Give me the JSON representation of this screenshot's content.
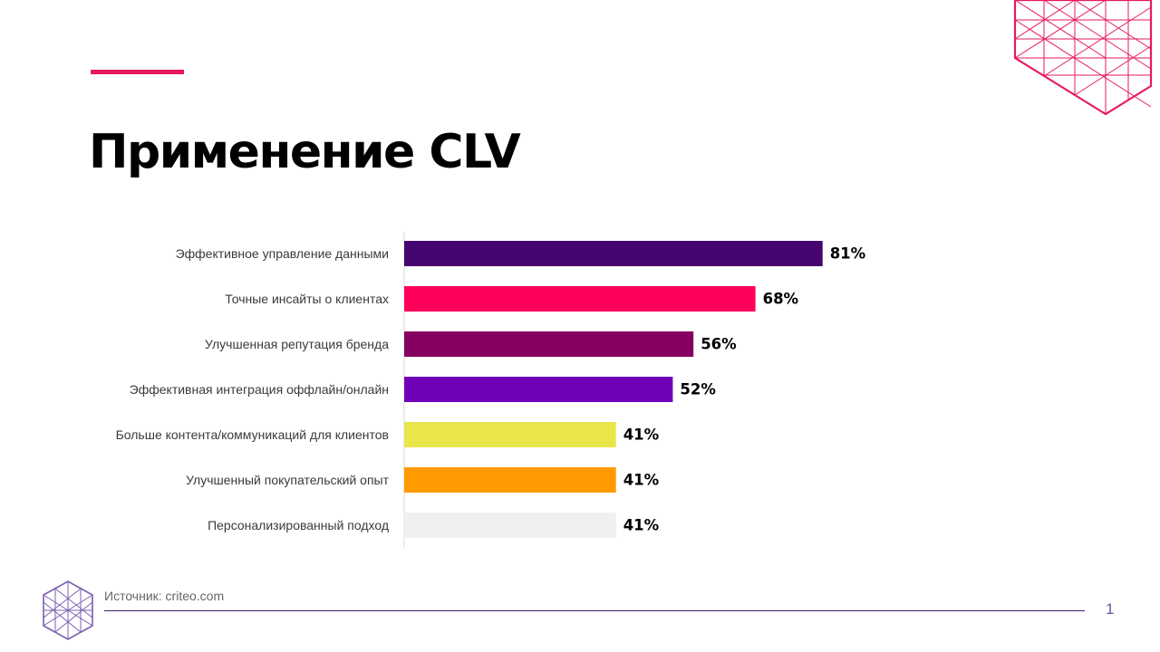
{
  "slide": {
    "title": "Применение CLV",
    "source": "Источник: criteo.com",
    "page_number": "1"
  },
  "colors": {
    "accent": "#e6195f",
    "deco_top": "#e6195f",
    "deco_bottom": "#7b5fb0",
    "footer_line": "#3d1a6b"
  },
  "icons": {
    "top_right": "triangle-grid-cube-icon",
    "bottom_left": "triangle-grid-cube-icon"
  },
  "chart_data": {
    "type": "bar",
    "orientation": "horizontal",
    "categories": [
      "Эффективное управление данными",
      "Точные инсайты о клиентах",
      "Улучшенная репутация бренда",
      "Эффективная интеграция оффлайн/онлайн",
      "Больше контента/коммуникаций для клиентов",
      "Улучшенный покупательский опыт",
      "Персонализированный подход"
    ],
    "values": [
      81,
      68,
      56,
      52,
      41,
      41,
      41
    ],
    "value_labels": [
      "81%",
      "68%",
      "56%",
      "52%",
      "41%",
      "41%",
      "41%"
    ],
    "colors": [
      "#460470",
      "#ff005a",
      "#850060",
      "#7000b8",
      "#e9e64a",
      "#ff9b00",
      "#f0f0f0"
    ],
    "xlim": [
      0,
      100
    ],
    "grid": false,
    "legend": "none",
    "data_labels": "right-of-bar"
  }
}
